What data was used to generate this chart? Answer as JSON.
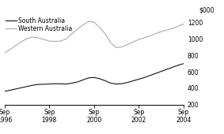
{
  "ylabel": "$000",
  "ylim": [
    200,
    1280
  ],
  "yticks": [
    200,
    400,
    600,
    800,
    1000,
    1200
  ],
  "xtick_labels": [
    "Sep\n1996",
    "Sep\n1998",
    "Sep\n2000",
    "Sep\n2002",
    "Sep\n2004"
  ],
  "xtick_positions": [
    0,
    8,
    16,
    24,
    32
  ],
  "sa_color": "#111111",
  "wa_color": "#aaaaaa",
  "legend_sa": "South Australia",
  "legend_wa": "Western Australia",
  "sa_data": [
    360,
    375,
    390,
    405,
    420,
    435,
    445,
    448,
    450,
    455,
    452,
    450,
    460,
    475,
    500,
    525,
    530,
    515,
    490,
    460,
    450,
    455,
    470,
    490,
    510,
    530,
    555,
    580,
    605,
    630,
    655,
    680,
    700
  ],
  "wa_data": [
    830,
    870,
    920,
    965,
    1005,
    1025,
    1015,
    995,
    975,
    970,
    975,
    1000,
    1060,
    1120,
    1170,
    1215,
    1205,
    1140,
    1060,
    950,
    895,
    905,
    935,
    965,
    995,
    1015,
    1040,
    1065,
    1090,
    1110,
    1130,
    1155,
    1185
  ]
}
